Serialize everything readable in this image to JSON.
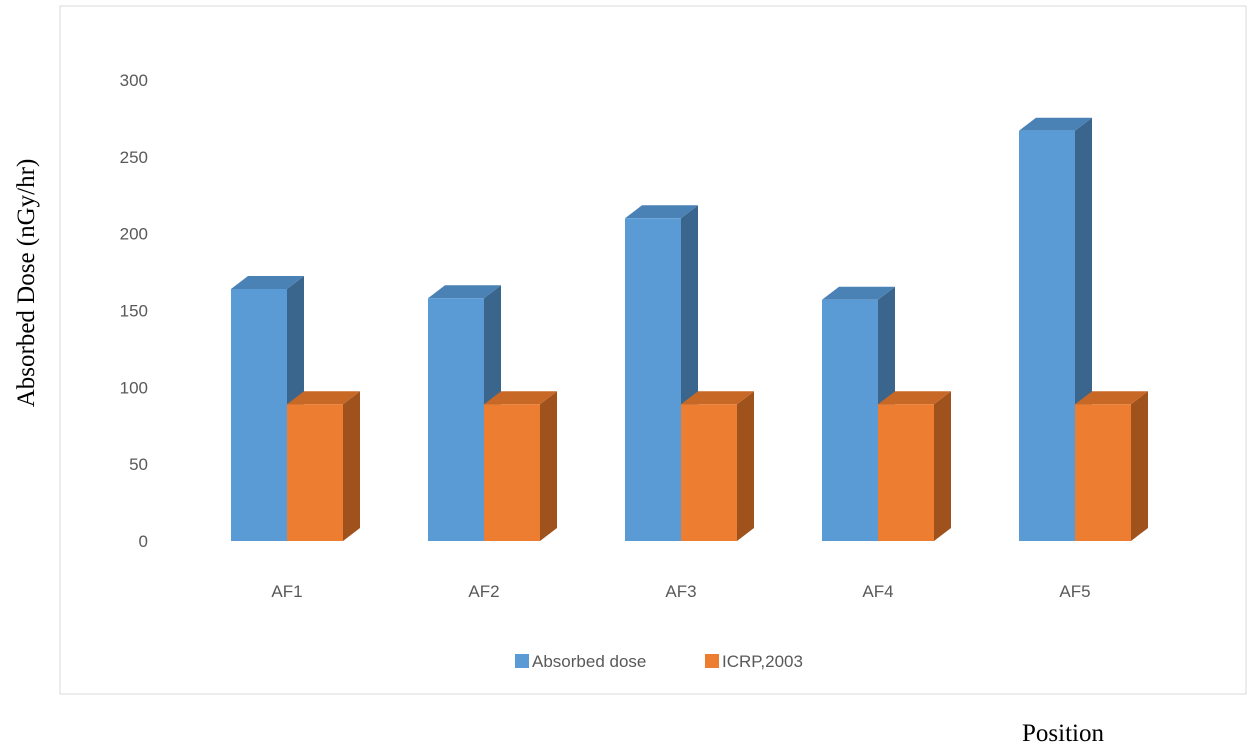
{
  "chart_data": {
    "type": "bar",
    "title": "",
    "xlabel": "Position",
    "ylabel": "Absorbed Dose (nGy/hr)",
    "categories": [
      "AF1",
      "AF2",
      "AF3",
      "AF4",
      "AF5"
    ],
    "series": [
      {
        "name": "Absorbed dose",
        "values": [
          164,
          158,
          210,
          157,
          267
        ],
        "color": "#5B9BD5",
        "side_color": "#3A658C",
        "top_color": "#4A82B6"
      },
      {
        "name": "ICRP,2003",
        "values": [
          89,
          89,
          89,
          89,
          89
        ],
        "color": "#ED7D31",
        "side_color": "#A0521D",
        "top_color": "#C86826"
      }
    ],
    "ylim": [
      0,
      300
    ],
    "yticks": [
      0,
      50,
      100,
      150,
      200,
      250,
      300
    ],
    "grid": false,
    "style": "3d-clustered-column",
    "legend_position": "bottom"
  }
}
